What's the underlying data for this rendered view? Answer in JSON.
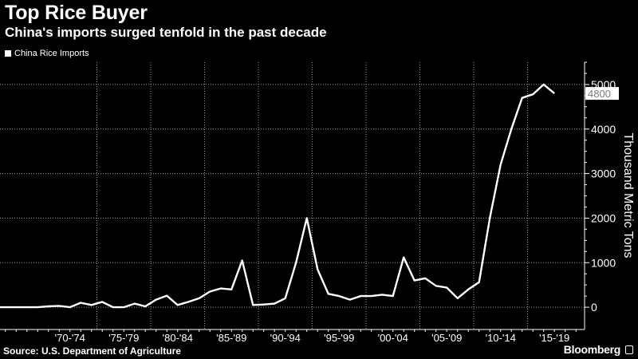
{
  "header": {
    "title": "Top Rice Buyer",
    "subtitle": "China's imports surged tenfold in the past decade"
  },
  "legend": {
    "label": "China Rice Imports"
  },
  "footer": {
    "source": "Source: U.S. Department of Agriculture",
    "brand": "Bloomberg"
  },
  "colors": {
    "background": "#000000",
    "line": "#ffffff",
    "grid": "#9a9a9a"
  },
  "chart_data": {
    "type": "line",
    "title": "Top Rice Buyer",
    "subtitle": "China's imports surged tenfold in the past decade",
    "ylabel": "Thousand Metric Tons",
    "xlabel": "",
    "ylim": [
      -500,
      5500
    ],
    "yticks": [
      0,
      1000,
      2000,
      3000,
      4000,
      5000
    ],
    "xlim": [
      1965.5,
      2019.8
    ],
    "x_ticks": [
      {
        "label": "'70-'74",
        "x": 1972
      },
      {
        "label": "'75-'79",
        "x": 1977
      },
      {
        "label": "'80-'84",
        "x": 1982
      },
      {
        "label": "'85-'89",
        "x": 1987
      },
      {
        "label": "'90-'94",
        "x": 1992
      },
      {
        "label": "'95-'99",
        "x": 1997
      },
      {
        "label": "'00-'04",
        "x": 2002
      },
      {
        "label": "'05-'09",
        "x": 2007
      },
      {
        "label": "'10-'14",
        "x": 2012
      },
      {
        "label": "'15-'19",
        "x": 2017
      }
    ],
    "x_separators": [
      1974.5,
      1979.5,
      1984.5,
      1989.5,
      1994.5,
      1999.5,
      2004.5,
      2009.5,
      2014.5
    ],
    "grid": true,
    "last_value_label": "4800",
    "series": [
      {
        "name": "China Rice Imports",
        "x": [
          1965.5,
          1966,
          1967,
          1968,
          1969,
          1970,
          1971,
          1972,
          1973,
          1974,
          1975,
          1976,
          1977,
          1978,
          1979,
          1980,
          1981,
          1982,
          1983,
          1984,
          1985,
          1986,
          1987,
          1988,
          1989,
          1990,
          1991,
          1992,
          1993,
          1994,
          1995,
          1996,
          1997,
          1998,
          1999,
          2000,
          2001,
          2002,
          2003,
          2004,
          2005,
          2006,
          2007,
          2008,
          2009,
          2010,
          2011,
          2012,
          2013,
          2014,
          2015,
          2016,
          2017,
          2018,
          2019
        ],
        "values": [
          0,
          0,
          0,
          0,
          0,
          20,
          30,
          0,
          100,
          50,
          120,
          0,
          0,
          80,
          20,
          170,
          260,
          50,
          120,
          200,
          350,
          420,
          400,
          1050,
          50,
          60,
          80,
          200,
          1000,
          2000,
          850,
          300,
          250,
          170,
          250,
          250,
          280,
          250,
          1120,
          600,
          650,
          480,
          440,
          200,
          400,
          560,
          2000,
          3200,
          4000,
          4700,
          4780,
          5000,
          4800,
          null,
          null
        ]
      }
    ]
  }
}
